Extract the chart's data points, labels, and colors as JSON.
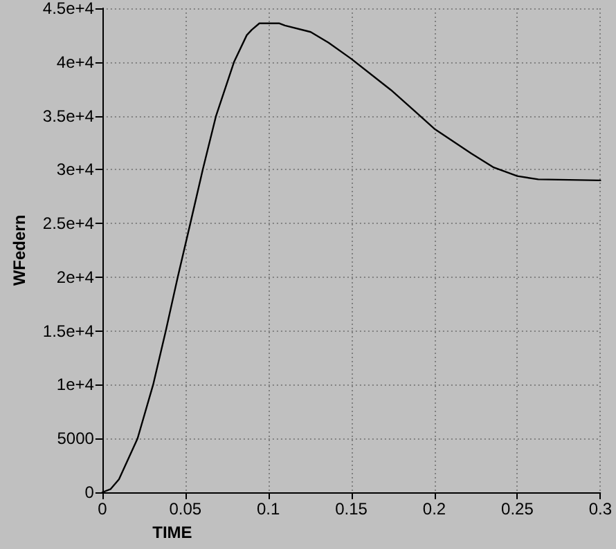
{
  "chart_data": {
    "type": "line",
    "xlabel": "TIME",
    "ylabel": "WFedern",
    "series": [
      {
        "color": "#000000",
        "x": [
          0,
          0.005,
          0.01,
          0.0212,
          0.0306,
          0.0382,
          0.0454,
          0.053,
          0.0605,
          0.0685,
          0.0793,
          0.087,
          0.09,
          0.0946,
          0.1,
          0.1067,
          0.11,
          0.1255,
          0.1363,
          0.15,
          0.1739,
          0.187,
          0.2,
          0.2223,
          0.2358,
          0.25,
          0.2626,
          0.3
        ],
        "values": [
          0,
          300,
          1200,
          5000,
          10000,
          15000,
          20000,
          25000,
          30000,
          35000,
          40000,
          42500,
          43000,
          43600,
          43600,
          43600,
          43400,
          42800,
          41800,
          40300,
          37400,
          35600,
          33800,
          31500,
          30200,
          29400,
          29100,
          29000
        ]
      }
    ],
    "xlim": [
      0,
      0.3
    ],
    "xticks": [
      0,
      0.05,
      0.1,
      0.15,
      0.2,
      0.25,
      0.3
    ],
    "ylim": [
      0,
      45000
    ],
    "yticks": [
      0,
      5000,
      {
        "value": 10000,
        "label": "1e+4"
      },
      {
        "value": 15000,
        "label": "1.5e+4"
      },
      {
        "value": 20000,
        "label": "2e+4"
      },
      {
        "value": 25000,
        "label": "2.5e+4"
      },
      {
        "value": 30000,
        "label": "3e+4"
      },
      {
        "value": 35000,
        "label": "3.5e+4"
      },
      {
        "value": 40000,
        "label": "4e+4"
      },
      {
        "value": 45000,
        "label": "4.5e+4"
      }
    ],
    "grid": true,
    "marker": "none",
    "line_style": "solid"
  }
}
